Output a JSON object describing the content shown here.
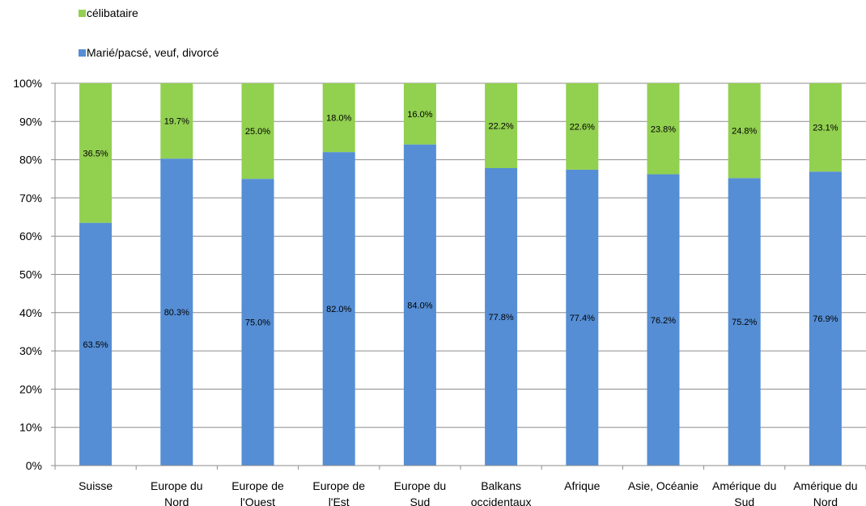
{
  "chart_data": {
    "type": "bar",
    "stacked": true,
    "percent_axis": true,
    "categories": [
      [
        "Suisse"
      ],
      [
        "Europe du",
        "Nord"
      ],
      [
        "Europe de",
        "l'Ouest"
      ],
      [
        "Europe de",
        "l'Est"
      ],
      [
        "Europe du",
        "Sud"
      ],
      [
        "Balkans",
        "occidentaux"
      ],
      [
        "Afrique"
      ],
      [
        "Asie, Océanie"
      ],
      [
        "Amérique du",
        "Sud"
      ],
      [
        "Amérique du",
        "Nord"
      ]
    ],
    "series": [
      {
        "name": "Marié/pacsé, veuf, divorcé",
        "color": "#558ED5",
        "values": [
          63.5,
          80.3,
          75.0,
          82.0,
          84.0,
          77.8,
          77.4,
          76.2,
          75.2,
          76.9
        ],
        "labels": [
          "63.5%",
          "80.3%",
          "75.0%",
          "82.0%",
          "84.0%",
          "77.8%",
          "77.4%",
          "76.2%",
          "75.2%",
          "76.9%"
        ]
      },
      {
        "name": "célibataire",
        "color": "#92D050",
        "values": [
          36.5,
          19.7,
          25.0,
          18.0,
          16.0,
          22.2,
          22.6,
          23.8,
          24.8,
          23.1
        ],
        "labels": [
          "36.5%",
          "19.7%",
          "25.0%",
          "18.0%",
          "16.0%",
          "22.2%",
          "22.6%",
          "23.8%",
          "24.8%",
          "23.1%"
        ]
      }
    ],
    "ylim": [
      0,
      100
    ],
    "yticks": [
      "0%",
      "10%",
      "20%",
      "30%",
      "40%",
      "50%",
      "60%",
      "70%",
      "80%",
      "90%",
      "100%"
    ],
    "legend": {
      "placement": "top-left",
      "entries": [
        "célibataire",
        "Marié/pacsé, veuf, divorcé"
      ]
    },
    "grid": true
  }
}
